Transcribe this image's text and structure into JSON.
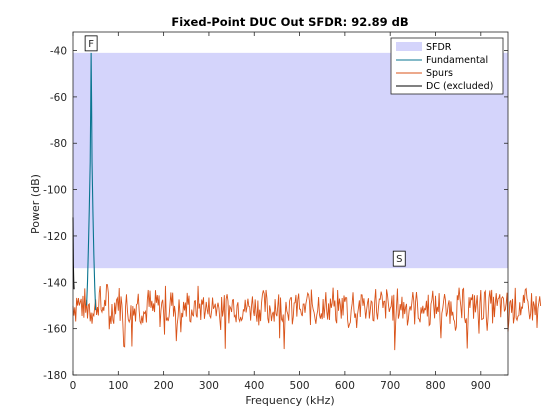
{
  "chart_data": {
    "type": "line",
    "title": "Fixed-Point DUC Out SFDR:  92.89 dB",
    "xlabel": "Frequency (kHz)",
    "ylabel": "Power (dB)",
    "xlim": [
      0,
      960
    ],
    "ylim": [
      -180,
      -32
    ],
    "x_ticks": [
      0,
      100,
      200,
      300,
      400,
      500,
      600,
      700,
      800,
      900
    ],
    "y_ticks": [
      -40,
      -60,
      -80,
      -100,
      -120,
      -140,
      -160,
      -180
    ],
    "grid": false,
    "legend_position": "top-right",
    "legend": [
      "SFDR",
      "Fundamental",
      "Spurs",
      "DC (excluded)"
    ],
    "sfdr_band": {
      "top": -41,
      "bottom": -133.9,
      "color": "#d4d4fb"
    },
    "fundamental": {
      "color": "#0a7590",
      "x": [
        30,
        32,
        34,
        36,
        38,
        39,
        40,
        41,
        42,
        44,
        46,
        48,
        50
      ],
      "y": [
        -150,
        -140,
        -125,
        -108,
        -88,
        -66,
        -41,
        -62,
        -88,
        -110,
        -128,
        -142,
        -152
      ]
    },
    "dc": {
      "color": "#000000",
      "x": [
        0,
        0.8,
        1.6,
        2.4
      ],
      "y": [
        -112,
        -132,
        -140,
        -143
      ]
    },
    "spurs": {
      "color": "#d95319",
      "x_start": 0,
      "x_step": 2,
      "y_avg": [
        -150,
        -149,
        -150,
        -151,
        -148,
        -147,
        -149,
        -150,
        -151,
        -148,
        -150,
        -152,
        -150,
        -149,
        -152,
        -150,
        -151,
        -149,
        -150,
        -152,
        -151,
        -152,
        -150,
        -154,
        -152,
        -151,
        -149,
        -150,
        -148,
        -147,
        -148,
        -151,
        -152,
        -150,
        -149,
        -151,
        -147,
        -146,
        -147,
        -148,
        -151,
        -152,
        -154,
        -152,
        -153,
        -151,
        -150,
        -148,
        -147,
        -148,
        -147,
        -148,
        -150,
        -149,
        -152,
        -154,
        -153,
        -152,
        -151,
        -150,
        -152,
        -153,
        -151,
        -152,
        -154,
        -153,
        -152,
        -153,
        -151,
        -150,
        -149,
        -147,
        -148,
        -149,
        -151,
        -152,
        -150,
        -151,
        -152,
        -154,
        -153,
        -152,
        -150,
        -149,
        -150,
        -149,
        -151,
        -152,
        -153,
        -151,
        -152,
        -150,
        -151,
        -149,
        -150,
        -151,
        -153,
        -152,
        -151,
        -150,
        -149,
        -150,
        -148,
        -150,
        -151,
        -153,
        -152,
        -151,
        -149,
        -148,
        -150,
        -149,
        -150,
        -152,
        -153,
        -152,
        -154,
        -153,
        -152,
        -150,
        -148,
        -150,
        -149,
        -150,
        -152,
        -151,
        -150,
        -148,
        -150,
        -151,
        -152,
        -153,
        -151,
        -152,
        -154,
        -152,
        -151,
        -150,
        -148,
        -149,
        -150,
        -151,
        -152,
        -150,
        -148,
        -150,
        -151,
        -152,
        -151,
        -153,
        -152,
        -151,
        -149,
        -150,
        -151,
        -152,
        -150,
        -149,
        -151,
        -152,
        -150,
        -151,
        -149,
        -150,
        -148,
        -149,
        -151,
        -152,
        -154,
        -152,
        -150,
        -149,
        -151,
        -152,
        -153,
        -150,
        -149,
        -150,
        -148,
        -149,
        -151,
        -150,
        -149,
        -150,
        -151,
        -150,
        -151,
        -150,
        -149,
        -152,
        -153,
        -151,
        -150,
        -151,
        -152,
        -150,
        -151,
        -149,
        -150,
        -148,
        -149,
        -151,
        -152,
        -150,
        -151,
        -152,
        -151,
        -150,
        -148,
        -149,
        -150,
        -151,
        -150,
        -149,
        -152,
        -154,
        -153,
        -151,
        -150,
        -151,
        -152,
        -153,
        -150,
        -149,
        -150,
        -151,
        -152,
        -150,
        -149,
        -150,
        -148,
        -150,
        -151,
        -152,
        -151,
        -150,
        -149,
        -148,
        -150,
        -151,
        -153,
        -152,
        -151,
        -150,
        -149,
        -150,
        -152,
        -151,
        -150,
        -149,
        -150,
        -149,
        -150,
        -152,
        -154,
        -153,
        -151,
        -150,
        -148,
        -149,
        -150,
        -151,
        -152,
        -150,
        -149,
        -150,
        -151,
        -152,
        -153,
        -151,
        -150,
        -149,
        -148,
        -150,
        -151,
        -150,
        -152,
        -154,
        -152,
        -150,
        -149,
        -150,
        -151,
        -152,
        -150,
        -149,
        -150,
        -148,
        -149,
        -151,
        -153,
        -152,
        -150,
        -149,
        -151,
        -152,
        -150,
        -151,
        -149,
        -150,
        -148,
        -149,
        -150,
        -151,
        -152,
        -154,
        -152,
        -151,
        -150,
        -148,
        -149,
        -150,
        -152,
        -151,
        -150,
        -149,
        -150,
        -151,
        -152,
        -150,
        -149,
        -148,
        -150,
        -151,
        -152,
        -153,
        -151,
        -150,
        -149,
        -150,
        -151,
        -152,
        -150,
        -149,
        -148,
        -150,
        -151,
        -153,
        -151,
        -150,
        -149,
        -150,
        -152,
        -153,
        -151,
        -150,
        -149,
        -150,
        -151,
        -152,
        -151,
        -150,
        -149,
        -150,
        -152,
        -154,
        -152,
        -150,
        -149,
        -150,
        -151,
        -150,
        -149,
        -150,
        -152,
        -151,
        -150,
        -149,
        -151,
        -152,
        -153,
        -151,
        -150,
        -149,
        -148,
        -150,
        -151,
        -152,
        -151,
        -150,
        -149,
        -150,
        -152,
        -153,
        -151,
        -150,
        -149,
        -150,
        -151,
        -152,
        -150,
        -149,
        -150,
        -152,
        -153,
        -152,
        -151,
        -150,
        -149,
        -150,
        -151,
        -152,
        -150,
        -149,
        -150,
        -151,
        -152,
        -150,
        -151,
        -149,
        -150,
        -152,
        -151,
        -150,
        -149,
        -150,
        -151,
        -152,
        -150,
        -149,
        -150,
        -152,
        -154,
        -152,
        -151,
        -150,
        -149,
        -150,
        -151,
        -152,
        -150,
        -149,
        -150,
        -151,
        -152,
        -153,
        -151,
        -150,
        -149,
        -150,
        -152,
        -151,
        -150,
        -149,
        -148,
        -150,
        -151,
        -152,
        -151,
        -150,
        -149,
        -150,
        -151,
        -150,
        -149,
        -150,
        -152,
        -154,
        -152,
        -151,
        -150,
        -149,
        -150,
        -151,
        -152,
        -150,
        -149,
        -150,
        -152,
        -151,
        -150,
        -149,
        -150,
        -151,
        -152,
        -153,
        -151,
        -150,
        -149,
        -150,
        -151,
        -152,
        -150,
        -149,
        -150,
        -152,
        -151,
        -150,
        -149,
        -150,
        -151,
        -152,
        -150,
        -149,
        -150,
        -152,
        -154,
        -152,
        -151,
        -150,
        -149,
        -150,
        -151,
        -152,
        -150,
        -149,
        -150,
        -151,
        -152,
        -150,
        -149,
        -150,
        -152,
        -151,
        -150,
        -149,
        -150
      ],
      "fluctuation_seed": 7
    },
    "markers": [
      {
        "label": "F",
        "x": 40,
        "y": -41,
        "color": "#0a7590"
      },
      {
        "label": "S",
        "x": 720,
        "y": -133.9,
        "color": "#d95319"
      }
    ]
  }
}
